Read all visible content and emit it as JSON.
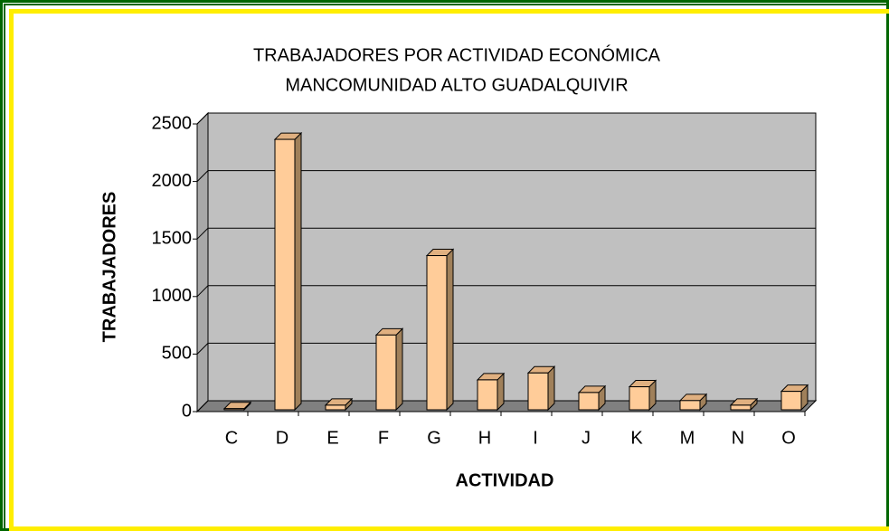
{
  "chart_data": {
    "type": "bar3d",
    "title": "TRABAJADORES POR ACTIVIDAD ECONÓMICA",
    "subtitle": "MANCOMUNIDAD ALTO GUADALQUIVIR",
    "x_label": "ACTIVIDAD",
    "y_label": "TRABAJADORES",
    "categories": [
      "C",
      "D",
      "E",
      "F",
      "G",
      "H",
      "I",
      "J",
      "K",
      "M",
      "N",
      "O"
    ],
    "values": [
      10,
      2350,
      40,
      650,
      1340,
      260,
      320,
      150,
      200,
      80,
      40,
      160
    ],
    "color": "#ffcc99",
    "ylim": [
      0,
      2500
    ],
    "yticks": [
      0,
      500,
      1000,
      1500,
      2000,
      2500
    ],
    "grid": true
  }
}
